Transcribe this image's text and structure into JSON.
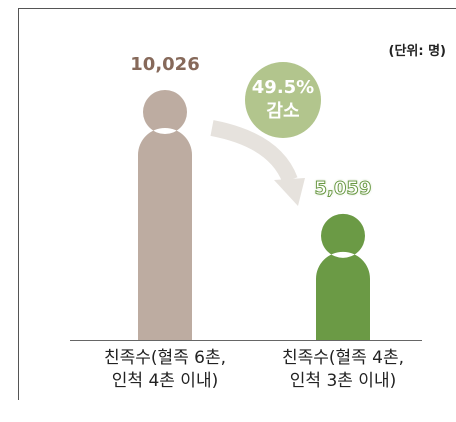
{
  "chart_data": {
    "type": "person-bar",
    "unit_label": "(단위: 명)",
    "annotation": "49.5%\n감소",
    "categories": [
      "친족수(혈족 6촌,\n인척 4촌 이내)",
      "친족수(혈족 4촌,\n인척 3촌 이내)"
    ],
    "values": [
      10026,
      5059
    ],
    "value_labels": [
      "10,026",
      "5,059"
    ],
    "colors": [
      "#bdaca1",
      "#6b9a45"
    ],
    "label_colors": [
      "#86695a",
      "#6b9a45"
    ],
    "annotation_color": "#b2c58d"
  }
}
